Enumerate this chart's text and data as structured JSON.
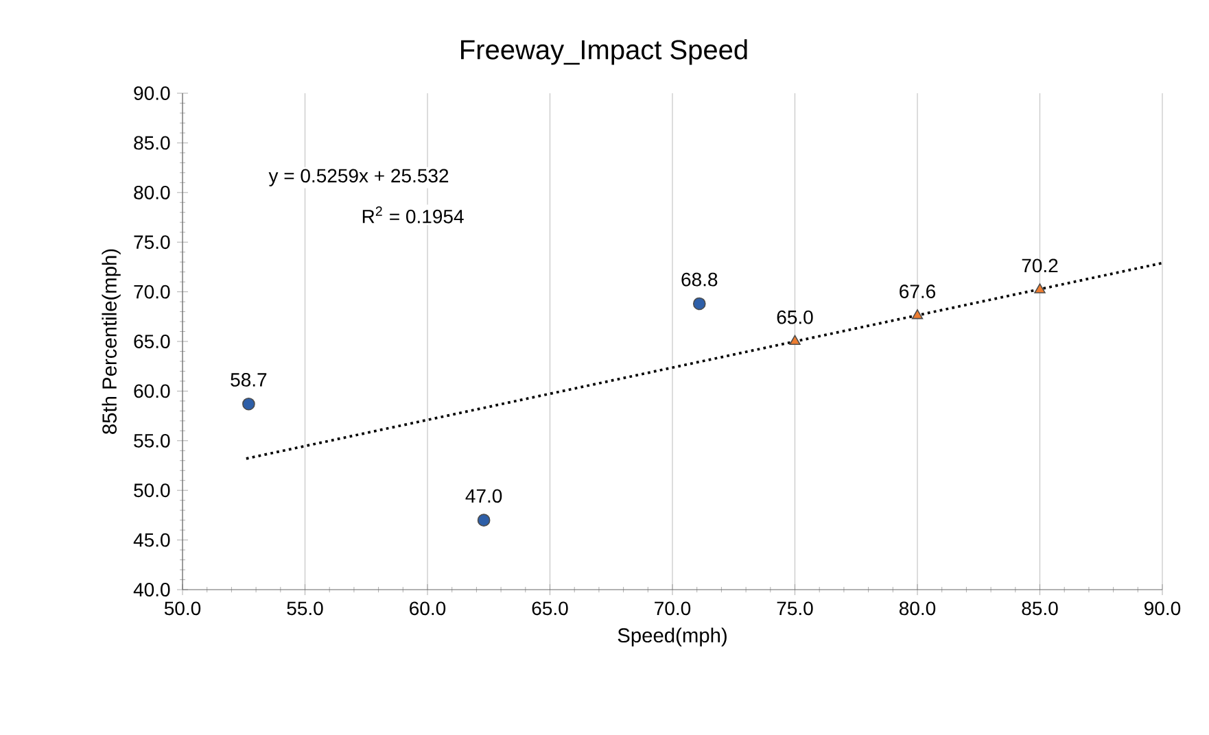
{
  "chart_data": {
    "type": "scatter",
    "title": "Freeway_Impact Speed",
    "xlabel": "Speed(mph)",
    "ylabel": "85th Percentile(mph)",
    "series": [
      {
        "color": "#2e5fa8",
        "marker": "circle",
        "x": [
          52.7,
          62.3,
          71.1
        ],
        "values": [
          58.7,
          47.0,
          68.8
        ],
        "value_labels": [
          "58.7",
          "47.0",
          "68.8"
        ]
      },
      {
        "color": "#ed7d31",
        "marker": "triangle",
        "x": [
          75,
          80,
          85
        ],
        "values": [
          65.0,
          67.6,
          70.2
        ],
        "value_labels": [
          "65.0",
          "67.6",
          "70.2"
        ]
      },
      {
        "type": "line",
        "color": "#000000",
        "line_style": "dotted",
        "marker": "none",
        "x": [
          52.6,
          90
        ],
        "values": [
          53.2,
          72.9
        ]
      }
    ],
    "annotations": [
      "y = 0.5259x + 25.532",
      "R$^{2}$ = 0.1954"
    ],
    "xlim": [
      50,
      90
    ],
    "ylim": [
      40,
      90
    ],
    "xticks": [
      {
        "value": 50,
        "label": "50.0"
      },
      {
        "value": 55,
        "label": "55.0"
      },
      {
        "value": 60,
        "label": "60.0"
      },
      {
        "value": 65,
        "label": "65.0"
      },
      {
        "value": 70,
        "label": "70.0"
      },
      {
        "value": 75,
        "label": "75.0"
      },
      {
        "value": 80,
        "label": "80.0"
      },
      {
        "value": 85,
        "label": "85.0"
      },
      {
        "value": 90,
        "label": "90.0"
      }
    ],
    "yticks": [
      {
        "value": 40,
        "label": "40.0"
      },
      {
        "value": 45,
        "label": "45.0"
      },
      {
        "value": 50,
        "label": "50.0"
      },
      {
        "value": 55,
        "label": "55.0"
      },
      {
        "value": 60,
        "label": "60.0"
      },
      {
        "value": 65,
        "label": "65.0"
      },
      {
        "value": 70,
        "label": "70.0"
      },
      {
        "value": 75,
        "label": "75.0"
      },
      {
        "value": 80,
        "label": "80.0"
      },
      {
        "value": 85,
        "label": "85.0"
      },
      {
        "value": 90,
        "label": "90.0"
      }
    ],
    "grid": "x"
  }
}
